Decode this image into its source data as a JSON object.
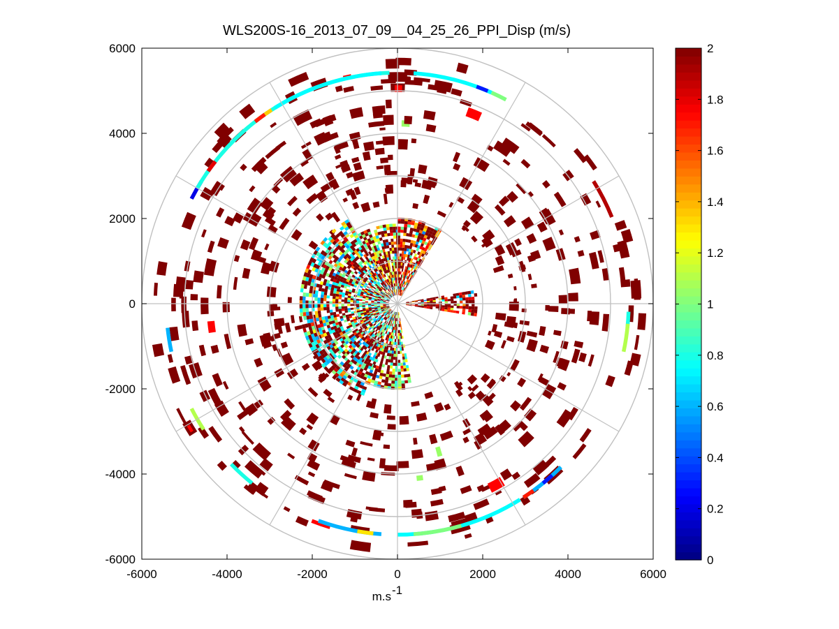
{
  "chart_data": {
    "type": "heatmap",
    "subtype": "polar PPI scan",
    "title": "WLS200S-16_2013_07_09__04_25_26_PPI_Disp (m/s)",
    "xlabel_base": "m.s",
    "xlabel_exp": "-1",
    "ylabel": "",
    "xlim": [
      -6000,
      6000
    ],
    "ylim": [
      -6000,
      6000
    ],
    "x_ticks": [
      -6000,
      -4000,
      -2000,
      0,
      2000,
      4000,
      6000
    ],
    "y_ticks": [
      6000,
      4000,
      2000,
      0,
      -2000,
      -4000,
      -6000
    ],
    "x_tick_labels": [
      "-6000",
      "-4000",
      "-2000",
      "0",
      "2000",
      "4000",
      "6000"
    ],
    "y_tick_labels": [
      "6000",
      "4000",
      "2000",
      "0",
      "-2000",
      "-4000",
      "-6000"
    ],
    "range_rings": [
      1000,
      2000,
      3000,
      4000,
      5000,
      6000
    ],
    "spokes_deg": [
      0,
      30,
      60,
      90,
      120,
      150,
      180,
      210,
      240,
      270,
      300,
      330
    ],
    "colorbar": {
      "min": 0,
      "max": 2,
      "tick_values": [
        2,
        1.8,
        1.6,
        1.4,
        1.2,
        1,
        0.8,
        0.6,
        0.4,
        0.2,
        0
      ],
      "tick_labels": [
        "2",
        "1.8",
        "1.6",
        "1.4",
        "1.2",
        "1",
        "0.8",
        "0.6",
        "0.4",
        "0.2",
        "0"
      ],
      "colormap": "jet"
    },
    "outer_ring_segments": [
      {
        "az_start": -56,
        "az_end": -2,
        "value": 0.8
      },
      {
        "az_start": 58,
        "az_end": 68,
        "value": 1.9
      },
      {
        "az_start": 92,
        "az_end": 96,
        "value": 0.8
      },
      {
        "az_start": 95,
        "az_end": 102,
        "value": 1.1
      },
      {
        "az_start": 135,
        "az_end": 147,
        "value": 0.6
      },
      {
        "az_start": 138,
        "az_end": 141,
        "value": 0.3
      },
      {
        "az_start": 144,
        "az_end": 147,
        "value": 1.7
      },
      {
        "az_start": 148,
        "az_end": 180,
        "value": 0.75
      },
      {
        "az_start": 164,
        "az_end": 176,
        "value": 1.0
      },
      {
        "az_start": 184,
        "az_end": 200,
        "value": 0.6
      },
      {
        "az_start": 186,
        "az_end": 190,
        "value": 1.3
      },
      {
        "az_start": 219,
        "az_end": 226,
        "value": 0.8
      },
      {
        "az_start": 237,
        "az_end": 243,
        "value": 1.1
      },
      {
        "az_start": 258,
        "az_end": 264,
        "value": 0.6
      },
      {
        "az_start": 297,
        "az_end": 302,
        "value": 0.2
      },
      {
        "az_start": 300,
        "az_end": 306,
        "value": 0.8
      },
      {
        "az_start": 305,
        "az_end": 308,
        "value": 1.8
      },
      {
        "az_start": 310,
        "az_end": 320,
        "value": 0.8
      },
      {
        "az_start": 322,
        "az_end": 325,
        "value": 1.7
      },
      {
        "az_start": 325,
        "az_end": 327,
        "value": 1.35
      },
      {
        "az_start": 328,
        "az_end": 356,
        "value": 0.75
      },
      {
        "az_start": 4,
        "az_end": 24,
        "value": 0.75
      },
      {
        "az_start": 20,
        "az_end": 23,
        "value": 0.3
      },
      {
        "az_start": 24,
        "az_end": 28,
        "value": 1.0
      }
    ],
    "near_field_sectors": [
      {
        "az_start": 200,
        "az_end": 330,
        "r_min": 200,
        "r_max": 2300,
        "dominant_value": 0.8
      },
      {
        "az_start": 330,
        "az_end": 360,
        "r_min": 200,
        "r_max": 1900,
        "dominant_value": 1.2
      },
      {
        "az_start": 0,
        "az_end": 30,
        "r_min": 200,
        "r_max": 2000,
        "dominant_value": 1.6
      },
      {
        "az_start": 80,
        "az_end": 100,
        "r_min": 200,
        "r_max": 1900,
        "dominant_value": 1.9
      },
      {
        "az_start": 170,
        "az_end": 200,
        "r_min": 200,
        "r_max": 2000,
        "dominant_value": 1.0
      }
    ],
    "background_value": 2.0,
    "notes": "Most scattered far-range returns saturate at >= 2 m/s (dark red)."
  }
}
